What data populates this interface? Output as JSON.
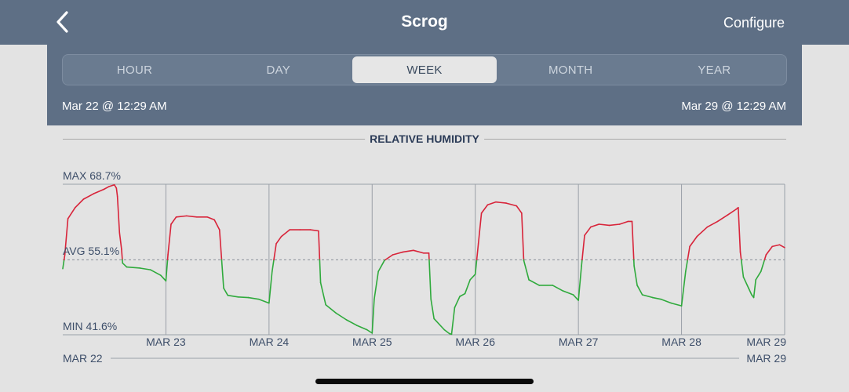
{
  "header": {
    "back_icon": "chevron-left-icon",
    "title": "Scrog",
    "configure_label": "Configure"
  },
  "tabs": [
    {
      "label": "HOUR",
      "active": false
    },
    {
      "label": "DAY",
      "active": false
    },
    {
      "label": "WEEK",
      "active": true
    },
    {
      "label": "MONTH",
      "active": false
    },
    {
      "label": "YEAR",
      "active": false
    }
  ],
  "range": {
    "start": "Mar 22 @ 12:29 AM",
    "end": "Mar 29 @ 12:29 AM"
  },
  "section_title": "RELATIVE HUMIDITY",
  "colors": {
    "above_avg": "#d8243a",
    "below_avg": "#2faa3c",
    "header_bg": "#5e6f85"
  },
  "chart_data": {
    "type": "line",
    "title": "RELATIVE HUMIDITY",
    "max_label": "MAX 68.7%",
    "avg_label": "AVG 55.1%",
    "min_label": "MIN 41.6%",
    "max": 68.7,
    "avg": 55.1,
    "min": 41.6,
    "x_tick_labels": [
      "MAR 23",
      "MAR 24",
      "MAR 25",
      "MAR 26",
      "MAR 27",
      "MAR 28",
      "MAR 29"
    ],
    "range_start_label": "MAR 22",
    "range_end_label": "MAR 29",
    "grid": true,
    "x_unit": "days since MAR 22 12:29 AM",
    "series": [
      {
        "values": [
          [
            0.0,
            53.5
          ],
          [
            0.02,
            56.0
          ],
          [
            0.05,
            62.5
          ],
          [
            0.12,
            64.5
          ],
          [
            0.2,
            66.0
          ],
          [
            0.3,
            67.0
          ],
          [
            0.4,
            67.8
          ],
          [
            0.45,
            68.3
          ],
          [
            0.5,
            68.6
          ],
          [
            0.52,
            68.0
          ],
          [
            0.53,
            66.5
          ],
          [
            0.55,
            60.0
          ],
          [
            0.57,
            57.0
          ],
          [
            0.58,
            54.5
          ],
          [
            0.62,
            53.8
          ],
          [
            0.75,
            53.6
          ],
          [
            0.85,
            53.3
          ],
          [
            0.95,
            52.3
          ],
          [
            1.0,
            51.3
          ],
          [
            1.02,
            56.0
          ],
          [
            1.05,
            61.5
          ],
          [
            1.1,
            62.8
          ],
          [
            1.2,
            63.0
          ],
          [
            1.3,
            62.8
          ],
          [
            1.4,
            62.8
          ],
          [
            1.47,
            62.3
          ],
          [
            1.52,
            60.5
          ],
          [
            1.56,
            50.0
          ],
          [
            1.6,
            48.7
          ],
          [
            1.7,
            48.4
          ],
          [
            1.8,
            48.3
          ],
          [
            1.9,
            48.0
          ],
          [
            2.0,
            47.3
          ],
          [
            2.03,
            53.0
          ],
          [
            2.07,
            58.0
          ],
          [
            2.12,
            59.3
          ],
          [
            2.2,
            60.5
          ],
          [
            2.3,
            60.5
          ],
          [
            2.4,
            60.5
          ],
          [
            2.48,
            60.3
          ],
          [
            2.5,
            51.0
          ],
          [
            2.55,
            47.0
          ],
          [
            2.65,
            45.5
          ],
          [
            2.75,
            44.3
          ],
          [
            2.85,
            43.3
          ],
          [
            2.95,
            42.5
          ],
          [
            3.0,
            41.9
          ],
          [
            3.02,
            48.0
          ],
          [
            3.06,
            53.0
          ],
          [
            3.12,
            55.0
          ],
          [
            3.2,
            56.0
          ],
          [
            3.3,
            56.5
          ],
          [
            3.4,
            56.8
          ],
          [
            3.5,
            56.3
          ],
          [
            3.55,
            56.3
          ],
          [
            3.57,
            48.0
          ],
          [
            3.6,
            44.5
          ],
          [
            3.7,
            42.5
          ],
          [
            3.75,
            41.8
          ],
          [
            3.77,
            41.7
          ],
          [
            3.8,
            46.5
          ],
          [
            3.85,
            48.5
          ],
          [
            3.9,
            49.0
          ],
          [
            3.95,
            51.5
          ],
          [
            4.0,
            52.5
          ],
          [
            4.03,
            58.0
          ],
          [
            4.06,
            63.5
          ],
          [
            4.12,
            65.0
          ],
          [
            4.2,
            65.5
          ],
          [
            4.3,
            65.3
          ],
          [
            4.4,
            64.8
          ],
          [
            4.45,
            63.5
          ],
          [
            4.47,
            55.0
          ],
          [
            4.52,
            51.5
          ],
          [
            4.62,
            50.5
          ],
          [
            4.75,
            50.5
          ],
          [
            4.85,
            49.5
          ],
          [
            4.95,
            48.8
          ],
          [
            5.0,
            47.8
          ],
          [
            5.03,
            54.0
          ],
          [
            5.06,
            59.5
          ],
          [
            5.12,
            61.0
          ],
          [
            5.2,
            61.5
          ],
          [
            5.3,
            61.3
          ],
          [
            5.4,
            61.5
          ],
          [
            5.48,
            62.0
          ],
          [
            5.52,
            62.0
          ],
          [
            5.54,
            54.0
          ],
          [
            5.57,
            50.5
          ],
          [
            5.62,
            48.8
          ],
          [
            5.72,
            48.3
          ],
          [
            5.8,
            48.0
          ],
          [
            5.9,
            47.3
          ],
          [
            6.0,
            46.8
          ],
          [
            6.04,
            53.0
          ],
          [
            6.08,
            57.5
          ],
          [
            6.15,
            59.3
          ],
          [
            6.25,
            61.0
          ],
          [
            6.35,
            62.0
          ],
          [
            6.45,
            63.2
          ],
          [
            6.53,
            64.2
          ],
          [
            6.55,
            64.5
          ],
          [
            6.57,
            56.5
          ],
          [
            6.6,
            52.0
          ],
          [
            6.65,
            50.0
          ],
          [
            6.68,
            48.8
          ],
          [
            6.7,
            48.3
          ],
          [
            6.72,
            51.5
          ],
          [
            6.77,
            53.0
          ],
          [
            6.82,
            56.0
          ],
          [
            6.88,
            57.5
          ],
          [
            6.95,
            57.8
          ],
          [
            7.0,
            57.3
          ]
        ]
      }
    ]
  }
}
